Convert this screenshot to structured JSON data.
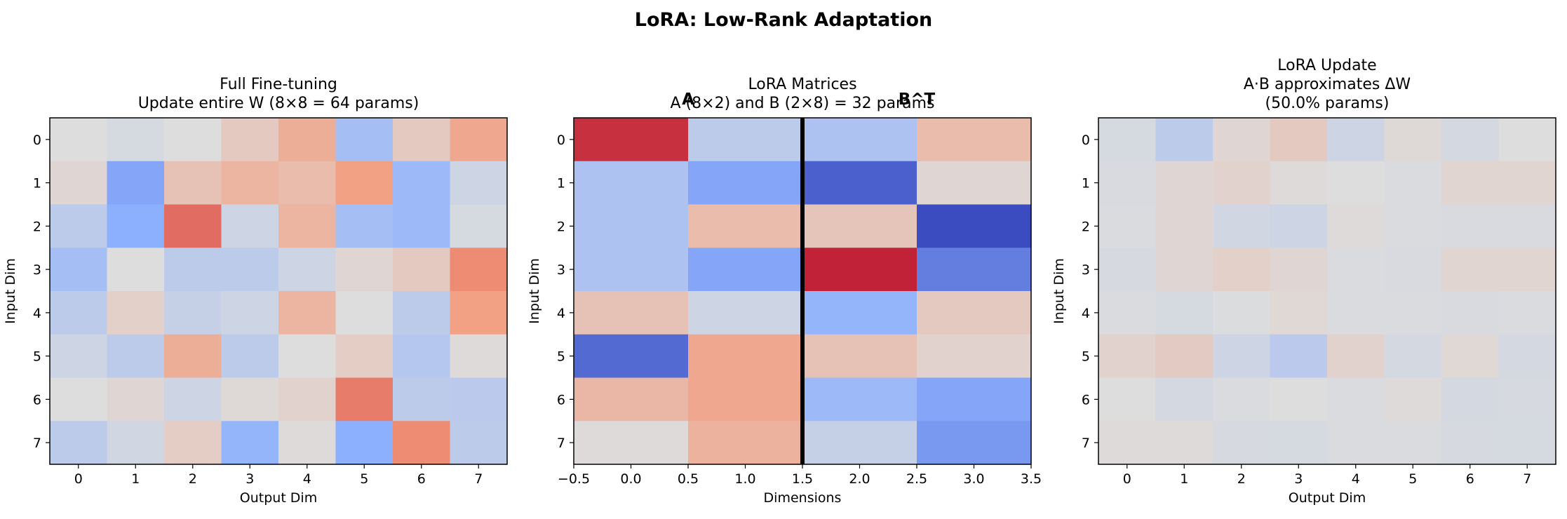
{
  "figure_title": "LoRA: Low-Rank Adaptation",
  "chart_data": [
    {
      "type": "heatmap",
      "title": "Full Fine-tuning\nUpdate entire W (8×8 = 64 params)",
      "xlabel": "Output Dim",
      "ylabel": "Input Dim",
      "x_ticks": [
        "0",
        "1",
        "2",
        "3",
        "4",
        "5",
        "6",
        "7"
      ],
      "y_ticks": [
        "0",
        "1",
        "2",
        "3",
        "4",
        "5",
        "6",
        "7"
      ],
      "colormap": "coolwarm",
      "vlim": [
        -1,
        1
      ],
      "values": [
        [
          0.0,
          -0.05,
          0.0,
          0.15,
          0.35,
          -0.35,
          0.15,
          0.4
        ],
        [
          0.05,
          -0.55,
          0.2,
          0.3,
          0.25,
          0.45,
          -0.4,
          -0.1
        ],
        [
          -0.2,
          -0.5,
          0.65,
          -0.1,
          0.3,
          -0.35,
          -0.4,
          -0.05
        ],
        [
          -0.35,
          0.0,
          -0.2,
          -0.2,
          -0.1,
          0.05,
          0.15,
          0.55
        ],
        [
          -0.2,
          0.1,
          -0.15,
          -0.1,
          0.3,
          0.0,
          -0.2,
          0.45
        ],
        [
          -0.1,
          -0.2,
          0.35,
          -0.2,
          0.0,
          0.12,
          -0.25,
          0.02
        ],
        [
          0.0,
          0.05,
          -0.1,
          0.03,
          0.08,
          0.6,
          -0.2,
          -0.22
        ],
        [
          -0.2,
          -0.08,
          0.12,
          -0.45,
          0.02,
          -0.5,
          0.55,
          -0.2
        ]
      ]
    },
    {
      "type": "heatmap",
      "title": "LoRA Matrices\nA (8×2) and B (2×8) = 32 params",
      "xlabel": "Dimensions",
      "ylabel": "Input Dim",
      "x_ticks": [
        "−0.5",
        "0.0",
        "0.5",
        "1.0",
        "1.5",
        "2.0",
        "2.5",
        "3.0",
        "3.5"
      ],
      "y_ticks": [
        "0",
        "1",
        "2",
        "3",
        "4",
        "5",
        "6",
        "7"
      ],
      "xlim": [
        -0.5,
        3.5
      ],
      "divider_x": 1.5,
      "annotations": [
        {
          "text": "A",
          "x": 0.5
        },
        {
          "text": "B^T",
          "x": 2.5
        }
      ],
      "colormap": "coolwarm",
      "vlim": [
        -1,
        1
      ],
      "values": [
        [
          0.85,
          -0.2,
          -0.3,
          0.25
        ],
        [
          -0.3,
          -0.55,
          -0.9,
          0.05
        ],
        [
          -0.3,
          0.25,
          0.18,
          -1.0
        ],
        [
          -0.3,
          -0.55,
          0.9,
          -0.75
        ],
        [
          0.2,
          -0.1,
          -0.45,
          0.15
        ],
        [
          -0.85,
          0.4,
          0.2,
          0.08
        ],
        [
          0.28,
          0.4,
          -0.4,
          -0.55
        ],
        [
          0.02,
          0.32,
          -0.15,
          -0.62
        ]
      ]
    },
    {
      "type": "heatmap",
      "title": "LoRA Update\nA·B approximates ΔW\n(50.0% params)",
      "xlabel": "Output Dim",
      "ylabel": "Input Dim",
      "x_ticks": [
        "0",
        "1",
        "2",
        "3",
        "4",
        "5",
        "6",
        "7"
      ],
      "y_ticks": [
        "0",
        "1",
        "2",
        "3",
        "4",
        "5",
        "6",
        "7"
      ],
      "colormap": "coolwarm",
      "vlim": [
        -1,
        1
      ],
      "values": [
        [
          -0.05,
          -0.2,
          0.05,
          0.15,
          -0.1,
          0.03,
          -0.06,
          0.0
        ],
        [
          -0.03,
          0.05,
          0.08,
          0.02,
          0.0,
          -0.02,
          0.06,
          0.06
        ],
        [
          -0.02,
          0.05,
          -0.08,
          -0.1,
          0.02,
          -0.02,
          -0.03,
          -0.03
        ],
        [
          -0.04,
          0.05,
          0.1,
          0.05,
          -0.02,
          -0.03,
          0.06,
          0.06
        ],
        [
          -0.02,
          -0.05,
          -0.01,
          0.04,
          -0.02,
          -0.02,
          -0.03,
          -0.02
        ],
        [
          0.08,
          0.14,
          -0.1,
          -0.22,
          0.08,
          -0.06,
          0.04,
          -0.06
        ],
        [
          0.0,
          -0.06,
          -0.02,
          0.0,
          -0.02,
          0.02,
          -0.06,
          -0.04
        ],
        [
          0.02,
          0.02,
          -0.04,
          -0.05,
          -0.02,
          -0.02,
          -0.04,
          -0.05
        ]
      ]
    }
  ]
}
